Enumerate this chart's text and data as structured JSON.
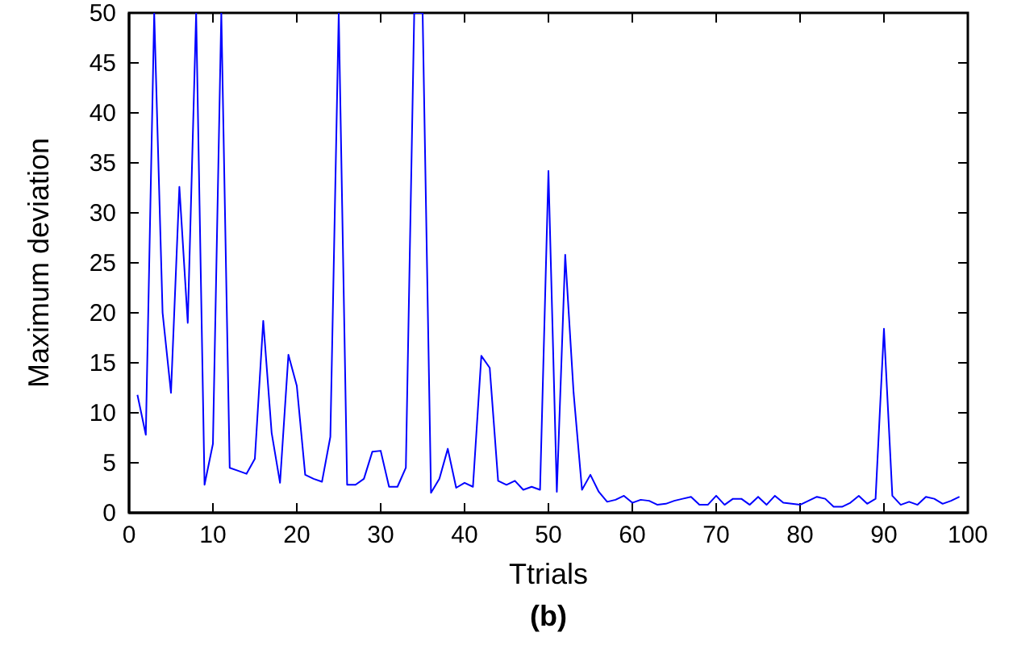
{
  "chart_data": {
    "type": "line",
    "xlabel": "Ttrials",
    "ylabel": "Maximum deviation",
    "annotations": [
      "(b)"
    ],
    "x": [
      1,
      2,
      3,
      4,
      5,
      6,
      7,
      8,
      9,
      10,
      11,
      12,
      13,
      14,
      15,
      16,
      17,
      18,
      19,
      20,
      21,
      22,
      23,
      24,
      25,
      26,
      27,
      28,
      29,
      30,
      31,
      32,
      33,
      34,
      35,
      36,
      37,
      38,
      39,
      40,
      41,
      42,
      43,
      44,
      45,
      46,
      47,
      48,
      49,
      50,
      51,
      52,
      53,
      54,
      55,
      56,
      57,
      58,
      59,
      60,
      61,
      62,
      63,
      64,
      65,
      66,
      67,
      68,
      69,
      70,
      71,
      72,
      73,
      74,
      75,
      76,
      77,
      78,
      79,
      80,
      81,
      82,
      83,
      84,
      85,
      86,
      87,
      88,
      89,
      90,
      91,
      92,
      93,
      94,
      95,
      96,
      97,
      98,
      99
    ],
    "series": [
      {
        "color": "#0000ff",
        "values": [
          11.8,
          7.8,
          50,
          20,
          12,
          32.6,
          19,
          50,
          2.8,
          6.9,
          50,
          4.5,
          4.2,
          3.9,
          5.4,
          19.2,
          8,
          3,
          15.8,
          12.7,
          3.8,
          3.4,
          3.1,
          7.6,
          50,
          2.8,
          2.8,
          3.4,
          6.1,
          6.2,
          2.6,
          2.6,
          4.5,
          50,
          50,
          2.0,
          3.4,
          6.4,
          2.5,
          3.0,
          2.6,
          15.7,
          14.5,
          3.2,
          2.8,
          3.2,
          2.3,
          2.6,
          2.3,
          34.2,
          2.1,
          25.8,
          12,
          2.3,
          3.8,
          2.1,
          1.1,
          1.3,
          1.7,
          1.0,
          1.3,
          1.2,
          0.8,
          0.9,
          1.2,
          1.4,
          1.6,
          0.8,
          0.8,
          1.7,
          0.8,
          1.4,
          1.4,
          0.8,
          1.6,
          0.8,
          1.7,
          1.0,
          0.9,
          0.8,
          1.2,
          1.6,
          1.4,
          0.6,
          0.6,
          1.0,
          1.7,
          0.9,
          1.4,
          18.4,
          1.7,
          0.8,
          1.1,
          0.8,
          1.6,
          1.4,
          0.9,
          1.2,
          1.6
        ]
      }
    ],
    "xlim": [
      0,
      100
    ],
    "xticks": [
      0,
      10,
      20,
      30,
      40,
      50,
      60,
      70,
      80,
      90,
      100
    ],
    "ylim": [
      0,
      50
    ],
    "yticks": [
      0,
      5,
      10,
      15,
      20,
      25,
      30,
      35,
      40,
      45,
      50
    ],
    "marker": "none",
    "line_style": "solid"
  }
}
